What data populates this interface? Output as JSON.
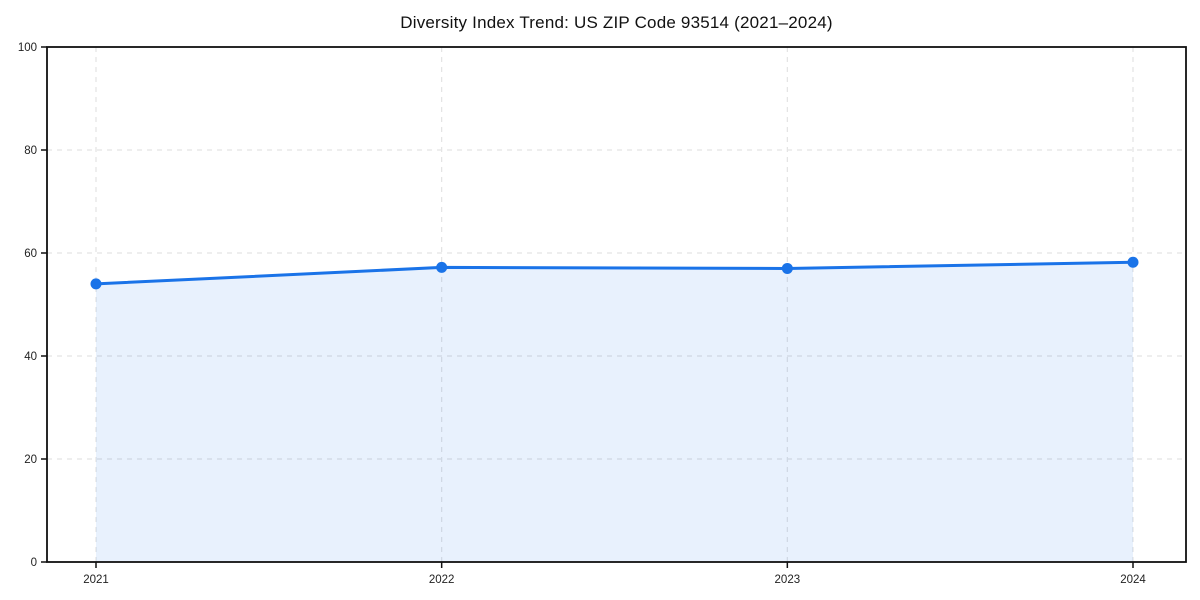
{
  "page": {
    "background": "#ffffff"
  },
  "chart_data": {
    "type": "line",
    "title": "Diversity Index Trend: US ZIP Code 93514 (2021–2024)",
    "categories": [
      "2021",
      "2022",
      "2023",
      "2024"
    ],
    "series": [
      {
        "name": "Diversity Index",
        "values": [
          54,
          57.2,
          57,
          58.2
        ]
      }
    ],
    "markers": true,
    "area_fill": true,
    "xlabel": "",
    "ylabel": "",
    "ylim": [
      0,
      100
    ],
    "yticks": [
      0,
      20,
      40,
      60,
      80,
      100
    ],
    "grid": "both",
    "grid_style": "dashed",
    "legend_position": "none",
    "colors": {
      "line": "#1a73e8",
      "marker": "#1a73e8",
      "area_fill": "rgba(26,115,232,0.10)",
      "grid": "#e3e3e3",
      "axis_frame": "#111111",
      "tick_label": "#222222",
      "title": "#111111"
    }
  }
}
